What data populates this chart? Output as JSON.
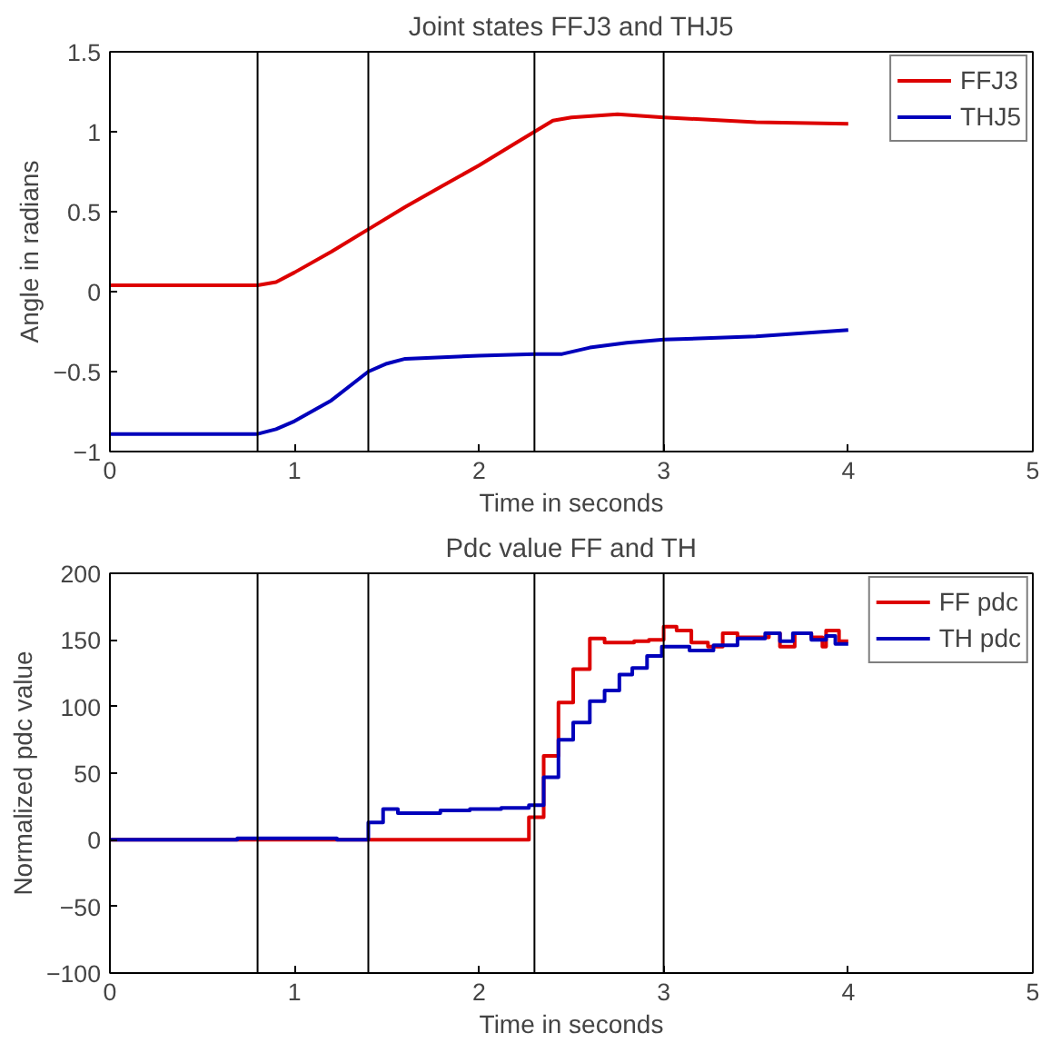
{
  "chart_data": [
    {
      "type": "line",
      "title": "Joint states FFJ3 and THJ5",
      "xlabel": "Time in seconds",
      "ylabel": "Angle in radians",
      "xlim": [
        0,
        5
      ],
      "xticks": [
        0,
        1,
        2,
        3,
        4,
        5
      ],
      "ylim": [
        -1,
        1.5
      ],
      "yticks": [
        -1,
        -0.5,
        0,
        0.5,
        1,
        1.5
      ],
      "grid": false,
      "legend": "top right",
      "series": [
        {
          "name": "FFJ3",
          "color": "#dd0000",
          "x": [
            0,
            0.8,
            0.9,
            1.0,
            1.2,
            1.4,
            1.6,
            1.8,
            2.0,
            2.2,
            2.3,
            2.4,
            2.5,
            2.75,
            3.0,
            3.5,
            4.0
          ],
          "values": [
            0.04,
            0.04,
            0.06,
            0.12,
            0.25,
            0.39,
            0.53,
            0.66,
            0.79,
            0.93,
            1.0,
            1.07,
            1.09,
            1.11,
            1.09,
            1.06,
            1.05
          ]
        },
        {
          "name": "THJ5",
          "color": "#0000bb",
          "x": [
            0,
            0.8,
            0.9,
            1.0,
            1.2,
            1.4,
            1.5,
            1.6,
            2.0,
            2.3,
            2.45,
            2.6,
            2.8,
            3.0,
            3.5,
            4.0
          ],
          "values": [
            -0.89,
            -0.89,
            -0.86,
            -0.81,
            -0.68,
            -0.5,
            -0.45,
            -0.42,
            -0.4,
            -0.39,
            -0.39,
            -0.35,
            -0.32,
            -0.3,
            -0.28,
            -0.24
          ]
        }
      ],
      "ref_lines": [
        {
          "axis": "x",
          "value": 0.8,
          "color": "#000000"
        },
        {
          "axis": "x",
          "value": 1.4,
          "color": "#000000"
        },
        {
          "axis": "x",
          "value": 2.3,
          "color": "#000000"
        },
        {
          "axis": "x",
          "value": 3.0,
          "color": "#000000"
        }
      ]
    },
    {
      "type": "step",
      "title": "Pdc value FF and TH",
      "xlabel": "Time in seconds",
      "ylabel": "Normalized pdc value",
      "xlim": [
        0,
        5
      ],
      "xticks": [
        0,
        1,
        2,
        3,
        4,
        5
      ],
      "ylim": [
        -100,
        200
      ],
      "yticks": [
        -100,
        -50,
        0,
        50,
        100,
        150,
        200
      ],
      "grid": false,
      "legend": "top right",
      "series": [
        {
          "name": "FF pdc",
          "color": "#dd0000",
          "x": [
            0,
            2.27,
            2.35,
            2.43,
            2.51,
            2.6,
            2.68,
            2.84,
            2.92,
            3.0,
            3.07,
            3.15,
            3.24,
            3.32,
            3.4,
            3.57,
            3.63,
            3.71,
            3.8,
            3.86,
            3.88,
            3.95,
            4.0
          ],
          "values": [
            0,
            17,
            63,
            103,
            128,
            151,
            148,
            149,
            150,
            160,
            157,
            148,
            145,
            155,
            152,
            155,
            145,
            155,
            152,
            145,
            157,
            149,
            149
          ]
        },
        {
          "name": "TH pdc",
          "color": "#0000bb",
          "x": [
            0,
            0.69,
            1.23,
            1.4,
            1.48,
            1.56,
            1.79,
            1.95,
            2.12,
            2.27,
            2.35,
            2.43,
            2.51,
            2.6,
            2.68,
            2.76,
            2.83,
            2.91,
            2.99,
            3.14,
            3.27,
            3.4,
            3.55,
            3.63,
            3.7,
            3.8,
            3.88,
            3.93,
            4.0
          ],
          "values": [
            0,
            1,
            0,
            13,
            23,
            20,
            22,
            23,
            24,
            26,
            47,
            75,
            88,
            104,
            112,
            124,
            129,
            138,
            145,
            142,
            146,
            151,
            155,
            149,
            155,
            150,
            153,
            147,
            147
          ]
        }
      ],
      "ref_lines": [
        {
          "axis": "x",
          "value": 0.8,
          "color": "#000000"
        },
        {
          "axis": "x",
          "value": 1.4,
          "color": "#000000"
        },
        {
          "axis": "x",
          "value": 2.3,
          "color": "#000000"
        },
        {
          "axis": "x",
          "value": 3.0,
          "color": "#000000"
        }
      ]
    }
  ]
}
